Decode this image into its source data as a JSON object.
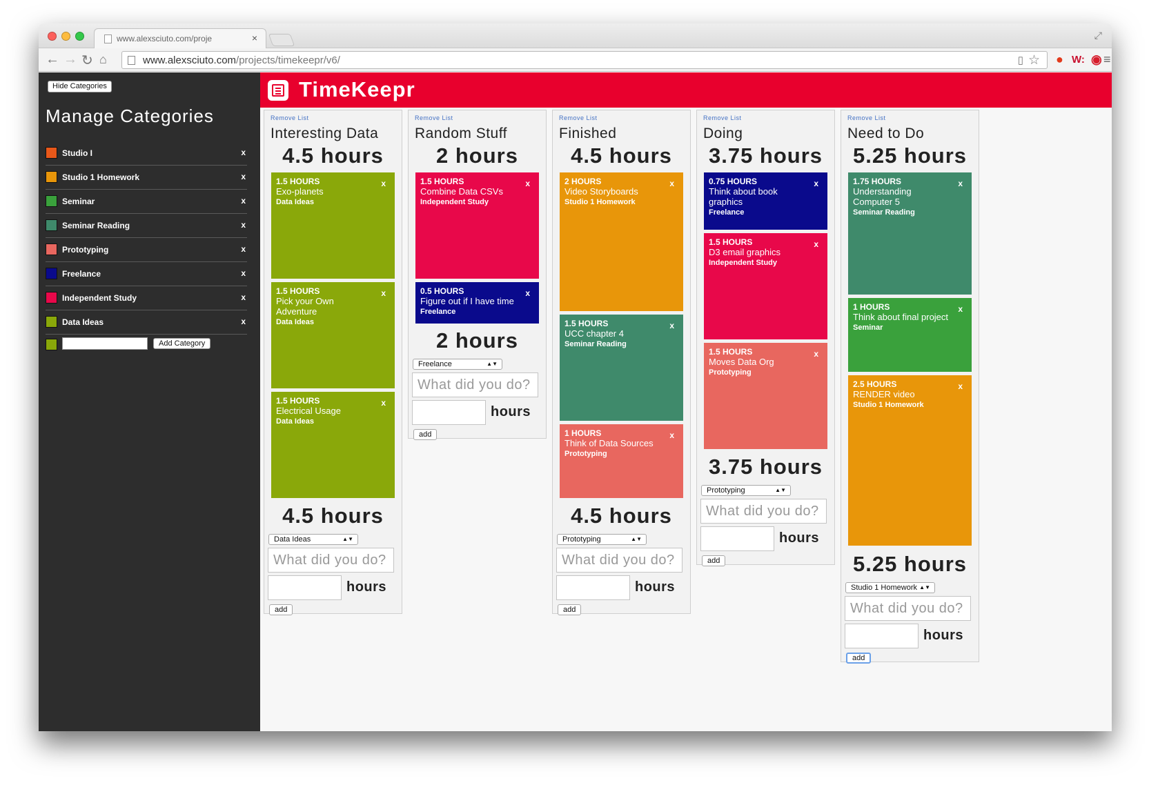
{
  "browser": {
    "tab_title": "www.alexsciuto.com/proje",
    "tab_close": "×",
    "url_host": "www.alexsciuto.com",
    "url_path": "/projects/timekeepr/v6/"
  },
  "sidebar": {
    "hide_label": "Hide Categories",
    "title": "Manage Categories",
    "categories": [
      {
        "name": "Studio I",
        "color": "#e8581a"
      },
      {
        "name": "Studio 1 Homework",
        "color": "#e8960a"
      },
      {
        "name": "Seminar",
        "color": "#3aa13c"
      },
      {
        "name": "Seminar Reading",
        "color": "#3f8a6b"
      },
      {
        "name": "Prototyping",
        "color": "#e8675f"
      },
      {
        "name": "Freelance",
        "color": "#0a0a8c"
      },
      {
        "name": "Independent Study",
        "color": "#e8084a"
      },
      {
        "name": "Data Ideas",
        "color": "#8aa80a"
      }
    ],
    "remove_mark": "x",
    "new_color": "#8aa80a",
    "add_label": "Add Category"
  },
  "app": {
    "brand": "TimeKeepr"
  },
  "common": {
    "remove_list": "Remove List",
    "what_placeholder": "What did you do?",
    "hours_label": "hours",
    "add_label": "add",
    "card_close": "x"
  },
  "lists": [
    {
      "name": "Interesting Data",
      "total": "4.5 hours",
      "footer_total": "4.5 hours",
      "select": "Data Ideas",
      "cards": [
        {
          "hours": "1.5 HOURS",
          "desc": "Exo-planets",
          "category": "Data Ideas",
          "color": "#8aa80a"
        },
        {
          "hours": "1.5 HOURS",
          "desc": "Pick your Own Adventure",
          "category": "Data Ideas",
          "color": "#8aa80a"
        },
        {
          "hours": "1.5 HOURS",
          "desc": "Electrical Usage",
          "category": "Data Ideas",
          "color": "#8aa80a"
        }
      ]
    },
    {
      "name": "Random Stuff",
      "total": "2 hours",
      "footer_total": "2 hours",
      "select": "Freelance",
      "cards": [
        {
          "hours": "1.5 HOURS",
          "desc": "Combine Data CSVs",
          "category": "Independent Study",
          "color": "#e8084a"
        },
        {
          "hours": "0.5 HOURS",
          "desc": "Figure out if I have time",
          "category": "Freelance",
          "color": "#0a0a8c"
        }
      ]
    },
    {
      "name": "Finished",
      "total": "4.5 hours",
      "footer_total": "4.5 hours",
      "select": "Prototyping",
      "cards": [
        {
          "hours": "2 HOURS",
          "desc": "Video Storyboards",
          "category": "Studio 1 Homework",
          "color": "#e8960a"
        },
        {
          "hours": "1.5 HOURS",
          "desc": "UCC chapter 4",
          "category": "Seminar Reading",
          "color": "#3f8a6b"
        },
        {
          "hours": "1 HOURS",
          "desc": "Think of Data Sources",
          "category": "Prototyping",
          "color": "#e8675f"
        }
      ]
    },
    {
      "name": "Doing",
      "total": "3.75 hours",
      "footer_total": "3.75 hours",
      "select": "Prototyping",
      "cards": [
        {
          "hours": "0.75 HOURS",
          "desc": "Think about book graphics",
          "category": "Freelance",
          "color": "#0a0a8c"
        },
        {
          "hours": "1.5 HOURS",
          "desc": "D3 email graphics",
          "category": "Independent Study",
          "color": "#e8084a"
        },
        {
          "hours": "1.5 HOURS",
          "desc": "Moves Data Org",
          "category": "Prototyping",
          "color": "#e8675f"
        }
      ]
    },
    {
      "name": "Need to Do",
      "total": "5.25 hours",
      "footer_total": "5.25 hours",
      "select": "Studio 1 Homework",
      "cards": [
        {
          "hours": "1.75 HOURS",
          "desc": "Understanding Computer 5",
          "category": "Seminar Reading",
          "color": "#3f8a6b"
        },
        {
          "hours": "1 HOURS",
          "desc": "Think about final project",
          "category": "Seminar",
          "color": "#3aa13c"
        },
        {
          "hours": "2.5 HOURS",
          "desc": "RENDER video",
          "category": "Studio 1 Homework",
          "color": "#e8960a"
        }
      ]
    }
  ]
}
